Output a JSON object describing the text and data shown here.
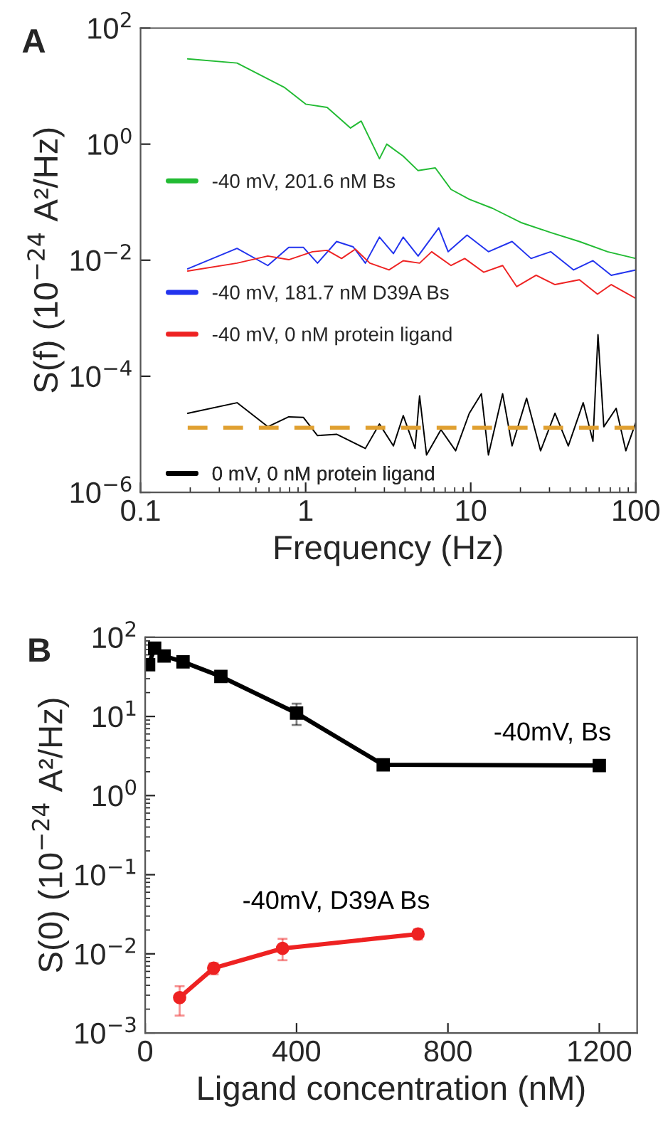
{
  "chart_data": [
    {
      "type": "line",
      "title": "A",
      "xlabel": "Frequency (Hz)",
      "ylabel": "S(f) (10$^{−24}$ A²/Hz)",
      "log": "xy",
      "xlim": [
        0.1,
        100
      ],
      "ylim": [
        1e-06,
        100
      ],
      "xticks": [
        0.1,
        1,
        10,
        100
      ],
      "yticks": [
        {
          "value": 1e-06,
          "label": "10$^{−6}$"
        },
        {
          "value": 0.0001,
          "label": "10$^{−4}$"
        },
        {
          "value": 0.01,
          "label": "10$^{−2}$"
        },
        {
          "value": 1,
          "label": "10$^{0}$"
        },
        {
          "value": 100,
          "label": "10$^{2}$"
        }
      ],
      "grid": false,
      "legend": "left",
      "series": [
        {
          "name": "-40 mV, 201.6 nM Bs",
          "color": "#22bb33",
          "x": [
            0.193,
            0.384,
            0.74,
            1.0,
            1.35,
            1.87,
            2.17,
            2.8,
            3.1,
            3.9,
            4.8,
            6.1,
            7.6,
            9.8,
            13.6,
            20.4,
            30.5,
            45.5,
            67.5,
            100
          ],
          "values": [
            29.5,
            25,
            9.6,
            4.9,
            4.3,
            1.9,
            2.5,
            0.56,
            1.0,
            0.62,
            0.35,
            0.39,
            0.166,
            0.112,
            0.078,
            0.044,
            0.03,
            0.021,
            0.014,
            0.0107
          ]
        },
        {
          "name": "-40 mV, 181.7 nM D39A Bs",
          "color": "#2233ee",
          "x": [
            0.193,
            0.384,
            0.59,
            0.79,
            0.97,
            1.18,
            1.54,
            1.94,
            2.3,
            2.8,
            3.4,
            3.9,
            4.8,
            6.4,
            7.3,
            9.5,
            12.8,
            17.8,
            23.2,
            30.5,
            42,
            55,
            71,
            100
          ],
          "values": [
            0.0071,
            0.016,
            0.0081,
            0.0166,
            0.0166,
            0.0089,
            0.021,
            0.017,
            0.0089,
            0.025,
            0.013,
            0.025,
            0.0118,
            0.036,
            0.014,
            0.027,
            0.014,
            0.021,
            0.0107,
            0.014,
            0.0068,
            0.0098,
            0.0055,
            0.0068
          ]
        },
        {
          "name": "-40 mV, 0 nM protein ligand",
          "color": "#ee2222",
          "x": [
            0.193,
            0.384,
            0.59,
            0.79,
            1.1,
            1.35,
            1.65,
            2.0,
            2.45,
            3.2,
            3.9,
            4.9,
            5.8,
            7.6,
            9.2,
            12,
            15.6,
            19,
            24.9,
            32.4,
            45.5,
            58.6,
            71,
            100
          ],
          "values": [
            0.0065,
            0.0089,
            0.0118,
            0.0102,
            0.014,
            0.0148,
            0.0107,
            0.0155,
            0.0089,
            0.0068,
            0.0098,
            0.0089,
            0.014,
            0.0081,
            0.0107,
            0.0062,
            0.0081,
            0.0035,
            0.0055,
            0.0038,
            0.0046,
            0.0026,
            0.0038,
            0.0022
          ]
        },
        {
          "name": "0 mV, 0 nM protein ligand",
          "color": "#000000",
          "x": [
            0.193,
            0.384,
            0.59,
            0.79,
            0.97,
            1.18,
            1.54,
            2.3,
            2.8,
            3.4,
            3.9,
            4.6,
            4.9,
            5.4,
            6.6,
            8.1,
            9.8,
            11.6,
            12.8,
            15.6,
            17.8,
            21.8,
            26.5,
            32.4,
            39,
            48,
            55,
            59,
            64,
            76,
            87,
            100
          ],
          "values": [
            2.3e-05,
            3.5e-05,
            1.35e-05,
            2e-05,
            1.95e-05,
            9.5e-06,
            1e-05,
            5.7e-06,
            1.5e-05,
            6.3e-06,
            2.1e-05,
            5.7e-06,
            4.6e-05,
            4.4e-06,
            1.2e-05,
            5.2e-06,
            2.3e-05,
            5e-05,
            4.4e-06,
            5e-05,
            6.3e-06,
            4.2e-05,
            5.2e-06,
            2.3e-05,
            6.3e-06,
            3.5e-05,
            7.6e-06,
            0.00052,
            1.35e-05,
            2.8e-05,
            5.2e-06,
            1.6e-05
          ]
        },
        {
          "color": "#e0a030",
          "line_style": "dashed",
          "x": [
            0.193,
            100
          ],
          "values": [
            1.3e-05,
            1.3e-05
          ]
        }
      ]
    },
    {
      "type": "line",
      "title": "B",
      "xlabel": "Ligand concentration (nM)",
      "ylabel": "S(0) (10$^{−24}$ A²/Hz)",
      "log": "y",
      "xlim": [
        0,
        1300
      ],
      "ylim": [
        0.001,
        100
      ],
      "xticks": [
        0,
        400,
        800,
        1200
      ],
      "yticks": [
        {
          "value": 0.001,
          "label": "10$^{−3}$"
        },
        {
          "value": 0.01,
          "label": "10$^{−2}$"
        },
        {
          "value": 0.1,
          "label": "10$^{−1}$"
        },
        {
          "value": 1,
          "label": "10$^{0}$"
        },
        {
          "value": 10,
          "label": "10$^{1}$"
        },
        {
          "value": 100,
          "label": "10$^{2}$"
        }
      ],
      "grid": false,
      "legend": false,
      "series": [
        {
          "name": "-40mV, Bs",
          "color": "#000000",
          "marker": "square",
          "x": [
            9,
            25,
            50,
            100,
            200,
            400,
            629,
            1200
          ],
          "values": [
            45,
            73,
            58,
            49,
            32,
            11,
            2.45,
            2.4
          ],
          "errors": [
            null,
            null,
            [
              50,
              66
            ],
            [
              43,
              55
            ],
            [
              28,
              36
            ],
            [
              7.8,
              14.5
            ],
            null,
            [
              2.1,
              2.7
            ]
          ]
        },
        {
          "name": "-40mV, D39A Bs",
          "color": "#ee2222",
          "marker": "circle",
          "x": [
            91,
            181,
            363,
            721
          ],
          "values": [
            0.0028,
            0.0066,
            0.0117,
            0.0178
          ],
          "errors": [
            [
              0.00166,
              0.0039
            ],
            [
              0.0055,
              0.0076
            ],
            [
              0.0083,
              0.0155
            ],
            [
              0.0152,
              0.0204
            ]
          ]
        }
      ]
    }
  ]
}
